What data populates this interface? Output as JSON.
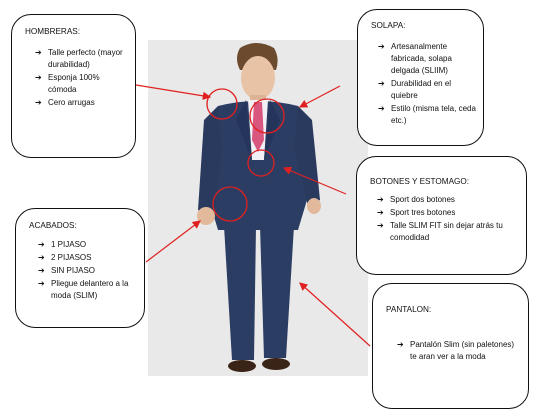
{
  "hombreras": {
    "title": "HOMBRERAS:",
    "items": [
      "Talle perfecto (mayor durabilidad)",
      "Esponja 100% cómoda",
      "Cero arrugas"
    ]
  },
  "solapa": {
    "title": "SOLAPA:",
    "items": [
      "Artesanalmente fabricada, solapa delgada (SLIIM)",
      "Durabilidad en el quiebre",
      "Estilo (misma tela, ceda etc.)"
    ]
  },
  "botones": {
    "title": "BOTONES Y ESTOMAGO:",
    "items": [
      "Sport dos botones",
      "Sport tres botones",
      "Talle SLIM FIT sin dejar atrás tu comodidad"
    ]
  },
  "acabados": {
    "title": "ACABADOS:",
    "items": [
      "1 PIJASO",
      "2 PIJASOS",
      "SIN PIJASO",
      "Pliegue delantero a la moda (SLIM)"
    ]
  },
  "pantalon": {
    "title": "PANTALON:",
    "items": [
      "Pantalón Slim (sin paletones) te aran ver a la moda"
    ]
  },
  "bullet_icon": "arrow-right-icon",
  "colors": {
    "annotation_red": "#e02020",
    "suit_navy": "#2c3d63",
    "tie_pink": "#d9567f",
    "background_gray": "#e9e9e9"
  }
}
